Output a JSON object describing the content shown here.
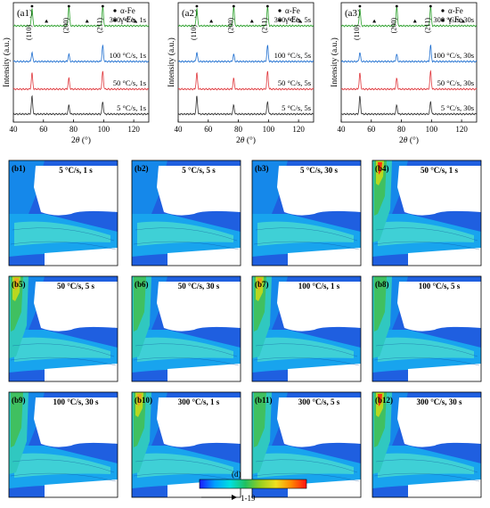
{
  "xrd": {
    "axis": {
      "xlabel_prefix": "2",
      "xlabel_theta": "θ",
      "xlabel_suffix": " (°)",
      "ylabel": "Intensity (a.u.)",
      "xticks": [
        40,
        60,
        80,
        100,
        120
      ]
    },
    "legend": {
      "alpha": "α-Fe",
      "gamma": "γ-Fe"
    },
    "peak_labels": [
      "(110)",
      "(200)",
      "(211)"
    ],
    "panels": [
      {
        "tag": "(a1)",
        "series": [
          "300 °C/s, 1s",
          "100 °C/s, 1s",
          "50 °C/s, 1s",
          "5 °C/s, 1s"
        ]
      },
      {
        "tag": "(a2)",
        "series": [
          "300 °C/s, 5s",
          "100 °C/s, 5s",
          "50 °C/s, 5s",
          "5 °C/s, 5s"
        ]
      },
      {
        "tag": "(a3)",
        "series": [
          "300 °C/s, 30s",
          "100 °C/s, 30s",
          "50 °C/s, 30s",
          "5 °C/s, 30s"
        ]
      }
    ],
    "series_colors": [
      "#2ca02c",
      "#1f6fd0",
      "#e0393e",
      "#333333"
    ]
  },
  "chart_data": [
    {
      "type": "line",
      "panel": "(a1)",
      "xlabel": "2θ (°)",
      "ylabel": "Intensity (a.u.)",
      "xlim": [
        40,
        130
      ],
      "series": [
        {
          "name": "300 °C/s, 1s",
          "peaks_2theta": [
            52.4,
            76.9,
            99.4
          ]
        },
        {
          "name": "100 °C/s, 1s",
          "peaks_2theta": [
            52.4,
            76.9,
            99.4
          ]
        },
        {
          "name": "50 °C/s, 1s",
          "peaks_2theta": [
            52.4,
            76.9,
            99.4
          ]
        },
        {
          "name": "5 °C/s, 1s",
          "peaks_2theta": [
            52.4,
            76.9,
            99.4
          ]
        }
      ]
    },
    {
      "type": "line",
      "panel": "(a2)",
      "xlabel": "2θ (°)",
      "ylabel": "Intensity (a.u.)",
      "xlim": [
        40,
        130
      ],
      "series": [
        {
          "name": "300 °C/s, 5s",
          "peaks_2theta": [
            52.4,
            76.9,
            99.4
          ]
        },
        {
          "name": "100 °C/s, 5s",
          "peaks_2theta": [
            52.4,
            76.9,
            99.4
          ]
        },
        {
          "name": "50 °C/s, 5s",
          "peaks_2theta": [
            52.4,
            76.9,
            99.4
          ]
        },
        {
          "name": "5 °C/s, 5s",
          "peaks_2theta": [
            52.4,
            76.9,
            99.4
          ]
        }
      ]
    },
    {
      "type": "line",
      "panel": "(a3)",
      "xlabel": "2θ (°)",
      "ylabel": "Intensity (a.u.)",
      "xlim": [
        40,
        130
      ],
      "series": [
        {
          "name": "300 °C/s, 30s",
          "peaks_2theta": [
            52.4,
            76.9,
            99.4
          ]
        },
        {
          "name": "100 °C/s, 30s",
          "peaks_2theta": [
            52.4,
            76.9,
            99.4
          ]
        },
        {
          "name": "50 °C/s, 30s",
          "peaks_2theta": [
            52.4,
            76.9,
            99.4
          ]
        },
        {
          "name": "5 °C/s, 30s",
          "peaks_2theta": [
            52.4,
            76.9,
            99.4
          ]
        }
      ]
    },
    {
      "type": "heatmap",
      "panels": [
        {
          "tag": "(b1)",
          "label": "5 °C/s, 1 s"
        },
        {
          "tag": "(b2)",
          "label": "5 °C/s, 5 s"
        },
        {
          "tag": "(b3)",
          "label": "5 °C/s, 30 s"
        },
        {
          "tag": "(b4)",
          "label": "50 °C/s, 1 s"
        },
        {
          "tag": "(b5)",
          "label": "50 °C/s, 5 s"
        },
        {
          "tag": "(b6)",
          "label": "50 °C/s, 30 s"
        },
        {
          "tag": "(b7)",
          "label": "100 °C/s, 1 s"
        },
        {
          "tag": "(b8)",
          "label": "100 °C/s, 5 s"
        },
        {
          "tag": "(b9)",
          "label": "100 °C/s, 30 s"
        },
        {
          "tag": "(b10)",
          "label": "300 °C/s, 1 s"
        },
        {
          "tag": "(b11)",
          "label": "300 °C/s, 5 s"
        },
        {
          "tag": "(b12)",
          "label": "300 °C/s, 30 s"
        }
      ],
      "colorbar": {
        "tag": "(d)",
        "range_label": "1-19",
        "min": 1,
        "max": 19,
        "colors": [
          "#1a1aff",
          "#00a0ff",
          "#00e0e0",
          "#20c060",
          "#9ad020",
          "#f0e020",
          "#ff8800",
          "#ff1010"
        ]
      }
    }
  ]
}
